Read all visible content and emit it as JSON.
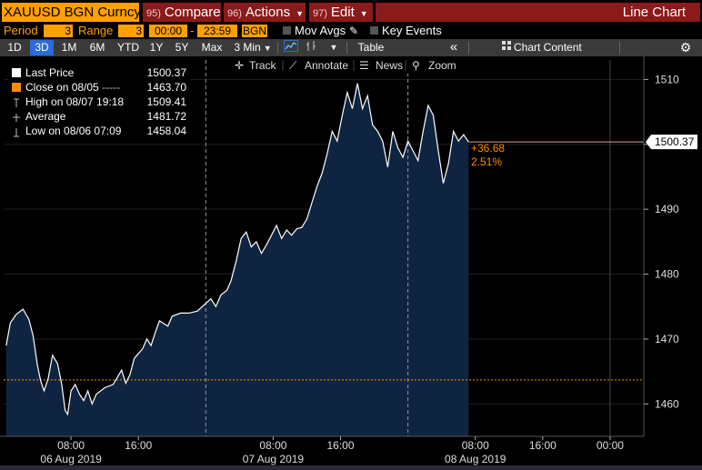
{
  "header": {
    "ticker": "XAUUSD BGN Curncy",
    "compare": {
      "num": "95)",
      "label": "Compare"
    },
    "actions": {
      "num": "96)",
      "label": "Actions"
    },
    "edit": {
      "num": "97)",
      "label": "Edit"
    },
    "view_title": "Line Chart"
  },
  "settings": {
    "period_label": "Period",
    "period_value": "3",
    "range_label": "Range",
    "range_value": "3",
    "time_from": "00:00",
    "time_to": "23:59",
    "source": "BGN",
    "mov_avgs": "Mov Avgs",
    "key_events": "Key Events"
  },
  "toolbar": {
    "zoom": [
      "1D",
      "3D",
      "1M",
      "6M",
      "YTD",
      "1Y",
      "5Y",
      "Max"
    ],
    "zoom_active": "3D",
    "interval": "3 Min",
    "table": "Table",
    "collapse": "«",
    "chart_content": "Chart Content",
    "settings_icon": "gear-icon"
  },
  "annotation_tools": {
    "track": "Track",
    "annotate": "Annotate",
    "news": "News",
    "zoom": "Zoom"
  },
  "legend": [
    {
      "name": "Last Price",
      "value": "1500.37",
      "color": "#ffffff",
      "icon": "white-square"
    },
    {
      "name": "Close on 08/05",
      "dash": "-----",
      "value": "1463.70",
      "color": "#ff8c00",
      "icon": "orange-square"
    },
    {
      "name": "High on 08/07 19:18",
      "value": "1509.41",
      "icon": "high-marker-icon"
    },
    {
      "name": "Average",
      "value": "1481.72",
      "icon": "average-marker-icon"
    },
    {
      "name": "Low on 08/06 07:09",
      "value": "1458.04",
      "icon": "low-marker-icon"
    }
  ],
  "last_price_label": "1500.37",
  "change": {
    "abs": "+36.68",
    "pct": "2.51%"
  },
  "colors": {
    "brand_orange": "#ffa000",
    "button_red": "#8b1a1a",
    "area_fill": "#0f2440",
    "line": "#ffffff",
    "close_line": "#ff8c00",
    "accent_blue": "#2b6cd6"
  },
  "chart_data": {
    "type": "area",
    "title": "",
    "xlabel": "",
    "ylabel": "",
    "ylim": [
      1455,
      1513
    ],
    "y_ticks": [
      1460,
      1470,
      1480,
      1490,
      1500,
      1510
    ],
    "x_ticks": [
      {
        "label": "08:00",
        "x": 8
      },
      {
        "label": "16:00",
        "x": 16
      },
      {
        "label": "08:00",
        "x": 32
      },
      {
        "label": "16:00",
        "x": 40
      },
      {
        "label": "08:00",
        "x": 56
      },
      {
        "label": "16:00",
        "x": 64
      },
      {
        "label": "00:00",
        "x": 72
      }
    ],
    "day_labels": [
      {
        "label": "06 Aug 2019",
        "x": 8
      },
      {
        "label": "07 Aug 2019",
        "x": 32
      },
      {
        "label": "08 Aug 2019",
        "x": 56
      }
    ],
    "day_boundaries": [
      24,
      48
    ],
    "x_range": [
      0,
      76
    ],
    "x_unit": "hours since 06 Aug 2019 00:00",
    "close_reference": 1463.7,
    "series": [
      {
        "name": "Last Price",
        "points": [
          [
            0.3,
            1469.0
          ],
          [
            0.8,
            1472.5
          ],
          [
            1.5,
            1473.8
          ],
          [
            2.3,
            1474.6
          ],
          [
            3.0,
            1473.0
          ],
          [
            3.5,
            1470.5
          ],
          [
            4.0,
            1466.0
          ],
          [
            4.4,
            1463.5
          ],
          [
            4.8,
            1462.0
          ],
          [
            5.3,
            1464.0
          ],
          [
            5.8,
            1467.5
          ],
          [
            6.4,
            1466.2
          ],
          [
            6.9,
            1463.0
          ],
          [
            7.3,
            1459.0
          ],
          [
            7.6,
            1458.4
          ],
          [
            8.0,
            1462.0
          ],
          [
            8.5,
            1463.0
          ],
          [
            9.0,
            1461.5
          ],
          [
            9.5,
            1460.5
          ],
          [
            10.0,
            1462.0
          ],
          [
            10.5,
            1460.0
          ],
          [
            11.0,
            1461.5
          ],
          [
            12.0,
            1462.5
          ],
          [
            13.0,
            1463.0
          ],
          [
            14.0,
            1465.2
          ],
          [
            14.5,
            1463.2
          ],
          [
            15.0,
            1464.5
          ],
          [
            15.5,
            1467.0
          ],
          [
            16.5,
            1468.5
          ],
          [
            17.0,
            1470.0
          ],
          [
            17.5,
            1469.0
          ],
          [
            18.0,
            1471.0
          ],
          [
            18.5,
            1472.8
          ],
          [
            19.5,
            1472.0
          ],
          [
            20.0,
            1473.5
          ],
          [
            21.0,
            1474.0
          ],
          [
            22.0,
            1474.0
          ],
          [
            23.0,
            1474.3
          ],
          [
            24.0,
            1475.5
          ],
          [
            24.6,
            1476.2
          ],
          [
            25.2,
            1475.0
          ],
          [
            25.8,
            1476.8
          ],
          [
            26.5,
            1477.5
          ],
          [
            27.0,
            1479.0
          ],
          [
            27.6,
            1482.0
          ],
          [
            28.2,
            1485.5
          ],
          [
            28.8,
            1486.5
          ],
          [
            29.4,
            1484.2
          ],
          [
            30.0,
            1485.0
          ],
          [
            30.6,
            1483.2
          ],
          [
            31.2,
            1484.5
          ],
          [
            31.8,
            1486.0
          ],
          [
            32.4,
            1487.5
          ],
          [
            33.0,
            1485.5
          ],
          [
            33.6,
            1486.8
          ],
          [
            34.2,
            1486.0
          ],
          [
            34.8,
            1487.0
          ],
          [
            35.4,
            1487.2
          ],
          [
            36.0,
            1488.5
          ],
          [
            36.6,
            1491.0
          ],
          [
            37.2,
            1493.5
          ],
          [
            37.8,
            1495.5
          ],
          [
            38.4,
            1498.5
          ],
          [
            39.0,
            1502.0
          ],
          [
            39.6,
            1500.5
          ],
          [
            40.2,
            1504.5
          ],
          [
            40.8,
            1508.0
          ],
          [
            41.4,
            1505.5
          ],
          [
            42.0,
            1509.4
          ],
          [
            42.6,
            1505.5
          ],
          [
            43.2,
            1507.5
          ],
          [
            43.8,
            1503.0
          ],
          [
            44.4,
            1502.0
          ],
          [
            45.0,
            1500.5
          ],
          [
            45.6,
            1496.5
          ],
          [
            46.2,
            1502.0
          ],
          [
            46.8,
            1499.5
          ],
          [
            47.4,
            1498.0
          ],
          [
            48.0,
            1500.5
          ],
          [
            48.6,
            1499.0
          ],
          [
            49.2,
            1497.5
          ],
          [
            49.8,
            1502.0
          ],
          [
            50.4,
            1506.0
          ],
          [
            51.0,
            1504.5
          ],
          [
            51.6,
            1499.0
          ],
          [
            52.2,
            1494.0
          ],
          [
            52.8,
            1497.0
          ],
          [
            53.4,
            1502.0
          ],
          [
            54.0,
            1500.5
          ],
          [
            54.6,
            1501.5
          ],
          [
            55.2,
            1500.37
          ]
        ]
      }
    ]
  }
}
